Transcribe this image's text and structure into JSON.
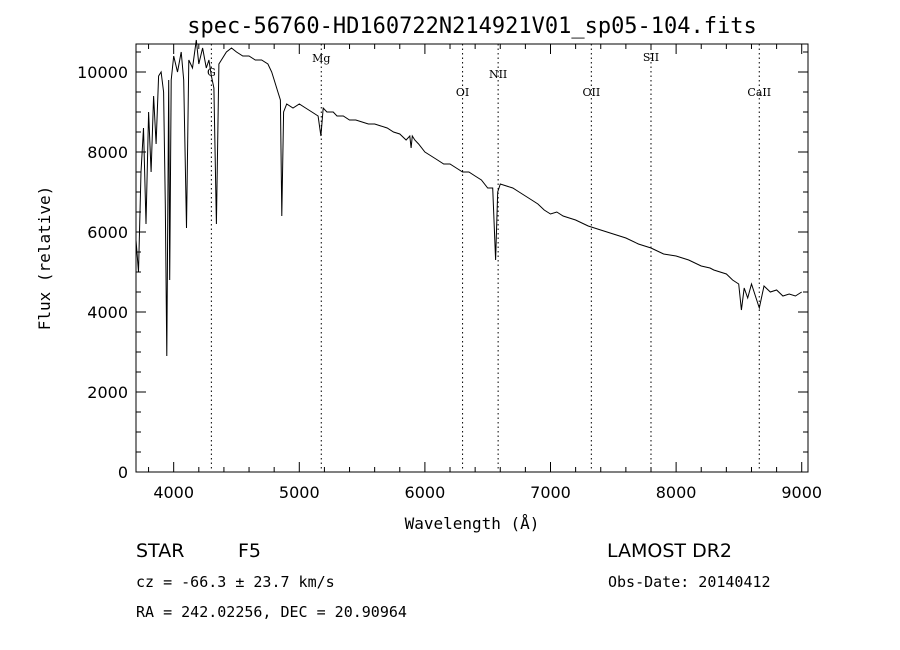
{
  "chart_data": {
    "type": "line",
    "title": "spec-56760-HD160722N214921V01_sp05-104.fits",
    "xlabel": "Wavelength (Å)",
    "ylabel": "Flux (relative)",
    "xlim": [
      3700,
      9050
    ],
    "ylim": [
      0,
      10700
    ],
    "xticks": [
      "4000",
      "5000",
      "6000",
      "7000",
      "8000",
      "9000"
    ],
    "yticks": [
      "0",
      "2000",
      "4000",
      "6000",
      "8000",
      "10000"
    ],
    "series": [
      {
        "name": "flux",
        "x": [
          3700,
          3720,
          3740,
          3760,
          3780,
          3800,
          3820,
          3840,
          3860,
          3880,
          3900,
          3920,
          3933,
          3945,
          3960,
          3968,
          3980,
          4000,
          4030,
          4060,
          4080,
          4102,
          4120,
          4150,
          4180,
          4200,
          4230,
          4260,
          4280,
          4300,
          4320,
          4340,
          4360,
          4380,
          4420,
          4460,
          4500,
          4550,
          4600,
          4650,
          4700,
          4750,
          4780,
          4800,
          4830,
          4850,
          4861,
          4875,
          4900,
          4950,
          5000,
          5050,
          5100,
          5150,
          5172,
          5190,
          5220,
          5270,
          5300,
          5350,
          5400,
          5450,
          5500,
          5550,
          5600,
          5650,
          5700,
          5750,
          5800,
          5850,
          5880,
          5890,
          5900,
          5920,
          5950,
          6000,
          6050,
          6100,
          6150,
          6200,
          6250,
          6300,
          6350,
          6400,
          6450,
          6500,
          6540,
          6563,
          6580,
          6600,
          6650,
          6700,
          6750,
          6800,
          6850,
          6900,
          6950,
          7000,
          7050,
          7100,
          7150,
          7200,
          7300,
          7400,
          7500,
          7600,
          7700,
          7800,
          7900,
          8000,
          8100,
          8200,
          8270,
          8300,
          8400,
          8450,
          8498,
          8520,
          8542,
          8570,
          8600,
          8662,
          8700,
          8750,
          8800,
          8850,
          8900,
          8950,
          9000
        ],
        "y": [
          5800,
          5000,
          7500,
          8600,
          6200,
          9000,
          7500,
          9400,
          8200,
          9900,
          10000,
          9500,
          6700,
          2900,
          9800,
          4800,
          9800,
          10400,
          10000,
          10500,
          9800,
          6100,
          10300,
          10100,
          10800,
          10200,
          10600,
          10100,
          10300,
          9900,
          9600,
          6200,
          10200,
          10300,
          10500,
          10600,
          10500,
          10400,
          10400,
          10300,
          10300,
          10200,
          10000,
          9800,
          9500,
          9300,
          6400,
          9000,
          9200,
          9100,
          9200,
          9100,
          9000,
          8900,
          8400,
          9100,
          9000,
          9000,
          8900,
          8900,
          8800,
          8800,
          8750,
          8700,
          8700,
          8650,
          8600,
          8500,
          8450,
          8300,
          8400,
          8100,
          8400,
          8300,
          8200,
          8000,
          7900,
          7800,
          7700,
          7700,
          7600,
          7500,
          7500,
          7400,
          7300,
          7100,
          7100,
          5300,
          7000,
          7200,
          7150,
          7100,
          7000,
          6900,
          6800,
          6700,
          6550,
          6450,
          6500,
          6400,
          6350,
          6300,
          6150,
          6050,
          5950,
          5850,
          5700,
          5600,
          5450,
          5400,
          5300,
          5150,
          5100,
          5050,
          4950,
          4800,
          4700,
          4050,
          4600,
          4350,
          4700,
          4100,
          4650,
          4500,
          4550,
          4400,
          4450,
          4400,
          4500
        ]
      }
    ],
    "line_markers": [
      {
        "label": "G",
        "x": 4300
      },
      {
        "label": "Mg",
        "x": 5175
      },
      {
        "label": "OI",
        "x": 6300
      },
      {
        "label": "NII",
        "x": 6583
      },
      {
        "label": "OII",
        "x": 7325
      },
      {
        "label": "SII",
        "x": 7800
      },
      {
        "label": "CaII",
        "x": 8662
      }
    ]
  },
  "info": {
    "object_type": "STAR",
    "subclass": "F5",
    "survey": "LAMOST DR2",
    "cz": "cz = -66.3 ± 23.7 km/s",
    "obs_date": "Obs-Date: 20140412",
    "coords": "RA = 242.02256, DEC =  20.90964"
  }
}
